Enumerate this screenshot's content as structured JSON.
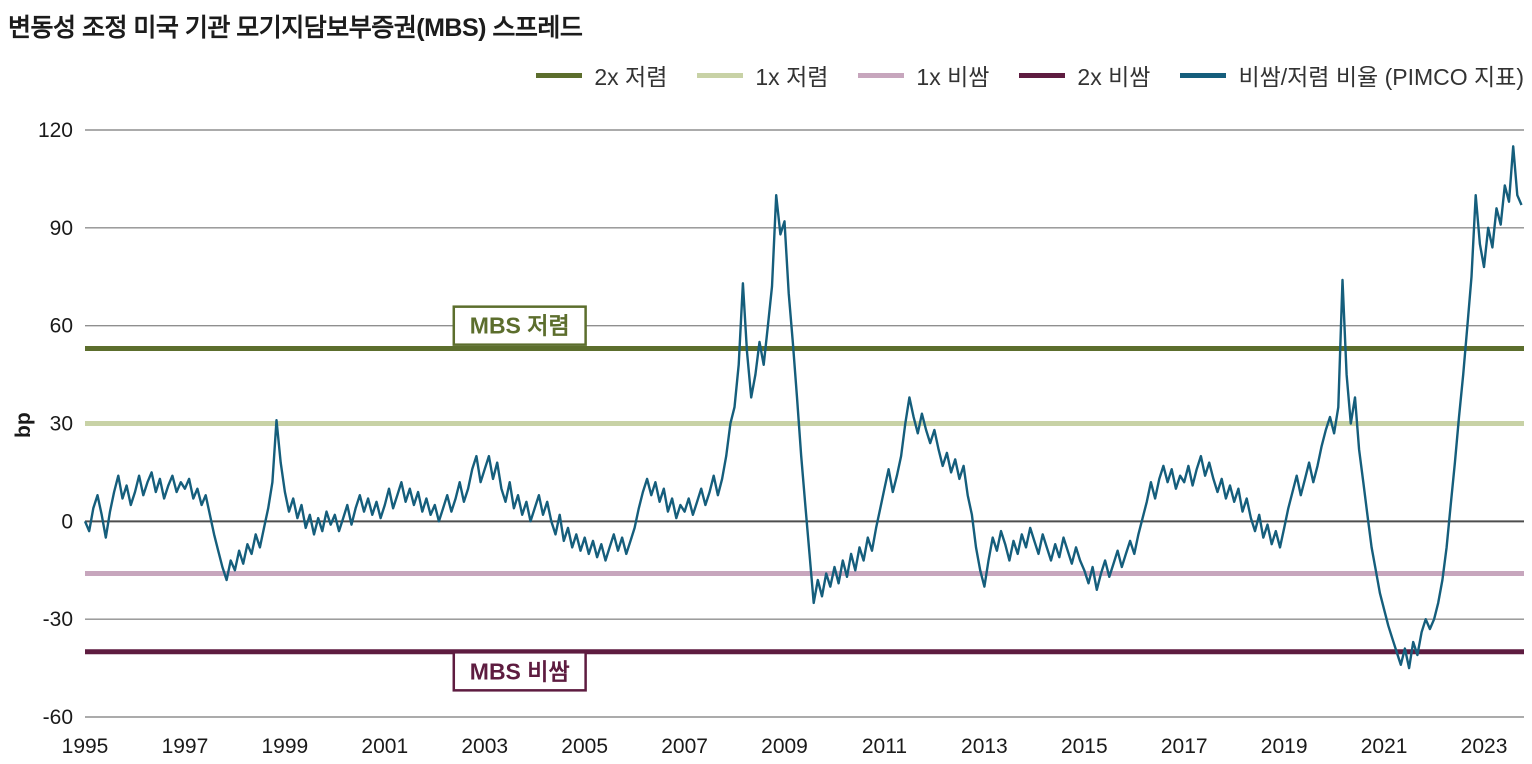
{
  "title": "변동성 조정 미국 기관 모기지담보부증권(MBS) 스프레드",
  "legend": [
    {
      "label": "2x 저렴",
      "color": "#5c6e2d"
    },
    {
      "label": "1x 저렴",
      "color": "#c8d2a6"
    },
    {
      "label": "1x 비쌈",
      "color": "#c7a6bd"
    },
    {
      "label": "2x 비쌈",
      "color": "#5e1c40"
    },
    {
      "label": "비쌈/저렴 비율 (PIMCO 지표)",
      "color": "#155e7c"
    }
  ],
  "chart_data": {
    "type": "line",
    "title": "변동성 조정 미국 기관 모기지담보부증권(MBS) 스프레드",
    "xlabel": "",
    "ylabel": "bp",
    "ylim": [
      -60,
      120
    ],
    "yticks": [
      120,
      90,
      60,
      30,
      0,
      -30,
      -60
    ],
    "xlim": [
      1995,
      2023.8
    ],
    "xticks": [
      1995,
      1997,
      1999,
      2001,
      2003,
      2005,
      2007,
      2009,
      2011,
      2013,
      2015,
      2017,
      2019,
      2021,
      2023
    ],
    "grid": true,
    "legend_position": "top-right",
    "reference_lines": [
      {
        "label": "2x 저렴",
        "value": 53,
        "color": "#5c6e2d"
      },
      {
        "label": "1x 저렴",
        "value": 30,
        "color": "#c8d2a6"
      },
      {
        "label": "1x 비쌈",
        "value": -16,
        "color": "#c7a6bd"
      },
      {
        "label": "2x 비쌈",
        "value": -40,
        "color": "#5e1c40"
      }
    ],
    "annotations": [
      {
        "text": "MBS 저렴",
        "x": 2003.7,
        "y": 60,
        "color": "#5c6e2d"
      },
      {
        "text": "MBS 비쌈",
        "x": 2003.7,
        "y": -46,
        "color": "#5e1c40"
      }
    ],
    "series": [
      {
        "name": "비쌈/저렴 비율 (PIMCO 지표)",
        "color": "#155e7c",
        "start_year": 1995,
        "points_per_year": 12,
        "values": [
          0,
          -3,
          4,
          8,
          2,
          -5,
          3,
          9,
          14,
          7,
          11,
          5,
          9,
          14,
          8,
          12,
          15,
          9,
          13,
          7,
          11,
          14,
          9,
          12,
          10,
          13,
          7,
          10,
          5,
          8,
          2,
          -4,
          -9,
          -14,
          -18,
          -12,
          -15,
          -9,
          -13,
          -7,
          -10,
          -4,
          -8,
          -2,
          4,
          12,
          31,
          18,
          9,
          3,
          7,
          1,
          5,
          -2,
          2,
          -4,
          1,
          -3,
          3,
          -1,
          2,
          -3,
          1,
          5,
          -1,
          4,
          8,
          3,
          7,
          2,
          6,
          1,
          5,
          10,
          4,
          8,
          12,
          6,
          10,
          5,
          9,
          3,
          7,
          2,
          5,
          0,
          4,
          8,
          3,
          7,
          12,
          6,
          10,
          16,
          20,
          12,
          16,
          20,
          13,
          18,
          10,
          6,
          12,
          4,
          8,
          2,
          6,
          0,
          4,
          8,
          2,
          6,
          0,
          -4,
          2,
          -6,
          -2,
          -8,
          -4,
          -9,
          -5,
          -10,
          -6,
          -11,
          -7,
          -12,
          -8,
          -4,
          -9,
          -5,
          -10,
          -6,
          -2,
          4,
          9,
          13,
          8,
          12,
          6,
          10,
          3,
          7,
          1,
          5,
          3,
          7,
          2,
          6,
          10,
          5,
          9,
          14,
          8,
          13,
          20,
          30,
          35,
          48,
          73,
          52,
          38,
          45,
          55,
          48,
          60,
          72,
          100,
          88,
          92,
          70,
          55,
          38,
          20,
          5,
          -10,
          -25,
          -18,
          -23,
          -16,
          -20,
          -14,
          -19,
          -12,
          -17,
          -10,
          -15,
          -8,
          -12,
          -5,
          -9,
          -2,
          4,
          10,
          16,
          9,
          14,
          20,
          30,
          38,
          32,
          27,
          33,
          28,
          24,
          28,
          22,
          17,
          21,
          15,
          19,
          13,
          17,
          8,
          2,
          -8,
          -15,
          -20,
          -12,
          -5,
          -9,
          -3,
          -7,
          -12,
          -6,
          -10,
          -4,
          -8,
          -2,
          -6,
          -10,
          -4,
          -8,
          -12,
          -7,
          -11,
          -5,
          -9,
          -13,
          -8,
          -12,
          -15,
          -19,
          -14,
          -21,
          -16,
          -12,
          -17,
          -13,
          -9,
          -14,
          -10,
          -6,
          -10,
          -4,
          1,
          6,
          12,
          7,
          13,
          17,
          12,
          16,
          10,
          14,
          12,
          17,
          11,
          16,
          20,
          14,
          18,
          13,
          9,
          13,
          7,
          11,
          6,
          10,
          3,
          7,
          1,
          -3,
          2,
          -5,
          -1,
          -7,
          -3,
          -8,
          -2,
          4,
          9,
          14,
          8,
          13,
          18,
          12,
          17,
          23,
          28,
          32,
          27,
          35,
          74,
          45,
          30,
          38,
          22,
          12,
          2,
          -8,
          -15,
          -22,
          -27,
          -32,
          -36,
          -40,
          -44,
          -39,
          -45,
          -37,
          -41,
          -34,
          -30,
          -33,
          -30,
          -25,
          -18,
          -8,
          5,
          18,
          32,
          45,
          60,
          75,
          100,
          85,
          78,
          90,
          84,
          96,
          91,
          103,
          98,
          115,
          100,
          97
        ]
      }
    ]
  }
}
